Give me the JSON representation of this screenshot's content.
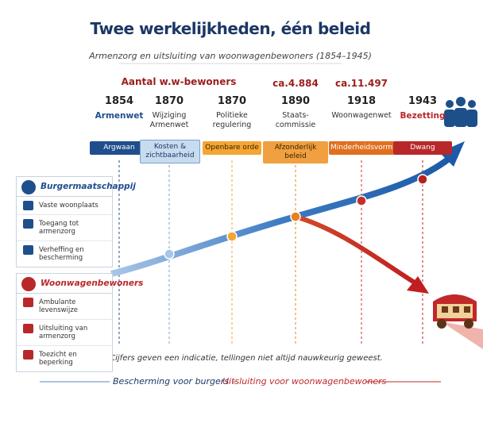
{
  "title": "Twee werkelijkheden, één beleid",
  "subtitle": "Armenzorg en uitsluiting van woonwagenbewoners (1854–1945)",
  "population_label": "Aantal w.w-bewoners",
  "events": [
    {
      "year": 1854,
      "label": "Armenwet",
      "tag": "Argwaan"
    },
    {
      "year": 1870,
      "label": "Wijziging Armenwet",
      "tag": "Kosten & zichtbaarheid"
    },
    {
      "year": 1870,
      "label": "Politieke regulering",
      "tag": "Openbare orde"
    },
    {
      "year": 1890,
      "label": "Staats-commissie",
      "tag": "Afzonderlijk beleid",
      "count": "ca.4.884"
    },
    {
      "year": 1918,
      "label": "Woonwagenwet",
      "tag": "Minderheidsvorming",
      "count": "ca.11.497"
    },
    {
      "year": 1943,
      "label": "Bezetting",
      "tag": "Dwang"
    }
  ],
  "groups": [
    {
      "title": "Burgermaatschappij",
      "items": [
        "Vaste woonplaats",
        "Toegang tot armenzorg",
        "Verheffing en bescherming"
      ]
    },
    {
      "title": "Woonwagenbewoners",
      "items": [
        "Ambulante levenswijze",
        "Uitsluiting van armenzorg",
        "Toezicht en beperking"
      ]
    }
  ],
  "footnote": "Cijfers geven een indicatie, tellingen niet altijd nauwkeurig geweest.",
  "bottom": {
    "left": "Bescherming voor burgers –",
    "right": "Uitsluiting voor woonwagenbewoners"
  }
}
